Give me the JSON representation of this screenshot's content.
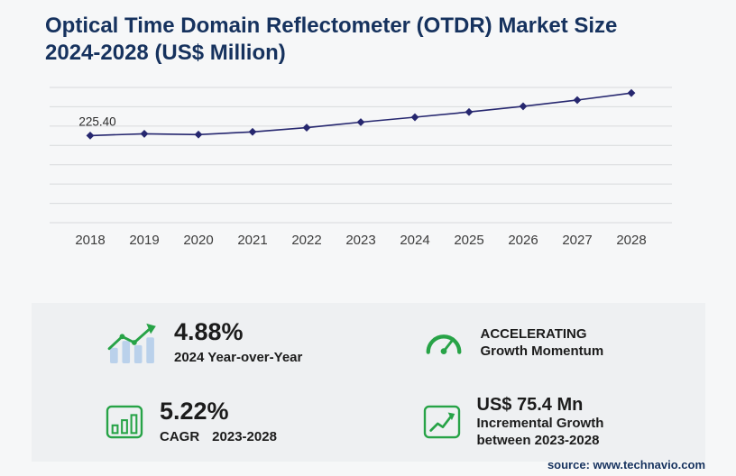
{
  "page": {
    "title": "Optical Time Domain Reflectometer (OTDR) Market Size 2024-2028 (US$ Million)",
    "source": "source: www.technavio.com"
  },
  "chart_data": {
    "type": "line",
    "title": "Optical Time Domain Reflectometer (OTDR) Market Size 2024-2028 (US$ Million)",
    "x": [
      "2018",
      "2019",
      "2020",
      "2021",
      "2022",
      "2023",
      "2024",
      "2025",
      "2026",
      "2027",
      "2028"
    ],
    "values": [
      225.4,
      230.0,
      228.0,
      235.0,
      246.0,
      260.2,
      272.9,
      286.5,
      301.2,
      317.4,
      335.6
    ],
    "first_point_label": "225.40",
    "ylabel": "",
    "xlabel": "",
    "ylim": [
      0,
      350
    ],
    "grid_step": 50,
    "grid": true,
    "legend": false,
    "marker": "diamond",
    "line_color": "#26276f"
  },
  "stats": {
    "yoy": {
      "value": "4.88%",
      "label": "2024 Year-over-Year"
    },
    "momentum": {
      "line1": "ACCELERATING",
      "line2": "Growth Momentum"
    },
    "cagr": {
      "value": "5.22%",
      "label_prefix": "CAGR",
      "label_range": "2023-2028"
    },
    "incremental": {
      "value": "US$ 75.4 Mn",
      "label_line1": "Incremental Growth",
      "label_line2": "between 2023-2028"
    }
  },
  "colors": {
    "navy": "#16325e",
    "line": "#26276f",
    "green": "#27a347",
    "bar_blue": "#bad1eb",
    "panel_bg": "#eef0f2",
    "grid": "#d8dadc"
  }
}
